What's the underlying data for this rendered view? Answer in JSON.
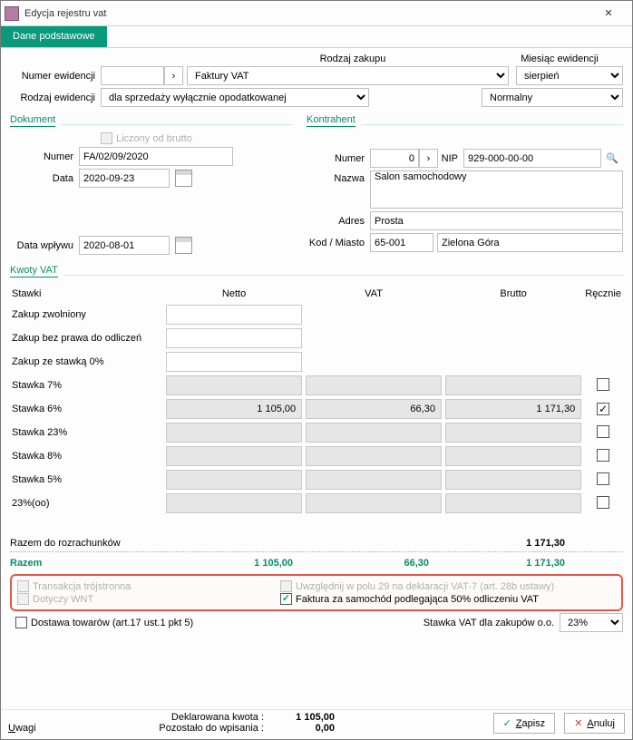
{
  "window": {
    "title": "Edycja rejestru vat"
  },
  "tab": {
    "label": "Dane podstawowe"
  },
  "headers": {
    "rodzaj_zakupu": "Rodzaj zakupu",
    "miesiac": "Miesiąc ewidencji"
  },
  "topform": {
    "numer_label": "Numer ewidencji",
    "numer_value": "",
    "faktury_select": "Faktury VAT",
    "miesiac_select": "sierpień",
    "rodzaj_label": "Rodzaj ewidencji",
    "rodzaj_select": "dla sprzedaży wyłącznie opodatkowanej",
    "normalny_select": "Normalny"
  },
  "dokument": {
    "title": "Dokument",
    "liczony": "Liczony od brutto",
    "numer_label": "Numer",
    "numer_value": "FA/02/09/2020",
    "data_label": "Data",
    "data_value": "2020-09-23",
    "wplyw_label": "Data wpływu",
    "wplyw_value": "2020-08-01"
  },
  "kontrahent": {
    "title": "Kontrahent",
    "numer_label": "Numer",
    "numer_value": "0",
    "nip_label": "NIP",
    "nip_value": "929-000-00-00",
    "nazwa_label": "Nazwa",
    "nazwa_value": "Salon samochodowy",
    "adres_label": "Adres",
    "adres_value": "Prosta",
    "kod_label": "Kod / Miasto",
    "kod_value": "65-001",
    "miasto_value": "Zielona Góra"
  },
  "kwoty": {
    "title": "Kwoty VAT",
    "col_stawki": "Stawki",
    "col_netto": "Netto",
    "col_vat": "VAT",
    "col_brutto": "Brutto",
    "col_recznie": "Ręcznie",
    "rows": [
      {
        "label": "Zakup zwolniony",
        "netto": "",
        "vat": null,
        "brutto": null,
        "recznie": null,
        "gray": false
      },
      {
        "label": "Zakup bez prawa do odliczeń",
        "netto": "",
        "vat": null,
        "brutto": null,
        "recznie": null,
        "gray": false
      },
      {
        "label": "Zakup ze stawką 0%",
        "netto": "",
        "vat": null,
        "brutto": null,
        "recznie": null,
        "gray": false
      },
      {
        "label": "Stawka 7%",
        "netto": "",
        "vat": "",
        "brutto": "",
        "recznie": false,
        "gray": true
      },
      {
        "label": "Stawka 6%",
        "netto": "1 105,00",
        "vat": "66,30",
        "brutto": "1 171,30",
        "recznie": true,
        "gray": true
      },
      {
        "label": "Stawka 23%",
        "netto": "",
        "vat": "",
        "brutto": "",
        "recznie": false,
        "gray": true
      },
      {
        "label": "Stawka 8%",
        "netto": "",
        "vat": "",
        "brutto": "",
        "recznie": false,
        "gray": true
      },
      {
        "label": "Stawka 5%",
        "netto": "",
        "vat": "",
        "brutto": "",
        "recznie": false,
        "gray": true
      },
      {
        "label": "23%(oo)",
        "netto": "",
        "vat": "",
        "brutto": "",
        "recznie": false,
        "gray": true
      }
    ]
  },
  "totals": {
    "razem_rozr_label": "Razem do rozrachunków",
    "razem_rozr_brutto": "1 171,30",
    "razem_label": "Razem",
    "razem_netto": "1 105,00",
    "razem_vat": "66,30",
    "razem_brutto": "1 171,30"
  },
  "options": {
    "transakcja": "Transakcja trójstronna",
    "dotyczy": "Dotyczy WNT",
    "dostawa": "Dostawa towarów (art.17 ust.1 pkt 5)",
    "uwzglednij": "Uwzględnij w polu 29 na deklaracji VAT-7 (art. 28b ustawy)",
    "faktura_samochod": "Faktura za samochód podlegająca 50% odliczeniu VAT",
    "stawka_oo_label": "Stawka VAT dla zakupów o.o.",
    "stawka_oo_value": "23%"
  },
  "footer": {
    "uwagi_label": "Uwagi",
    "dekl_label": "Deklarowana kwota :",
    "dekl_value": "1 105,00",
    "pozost_label": "Pozostało do wpisania :",
    "pozost_value": "0,00",
    "zapisz": "Zapisz",
    "anuluj": "Anuluj"
  }
}
